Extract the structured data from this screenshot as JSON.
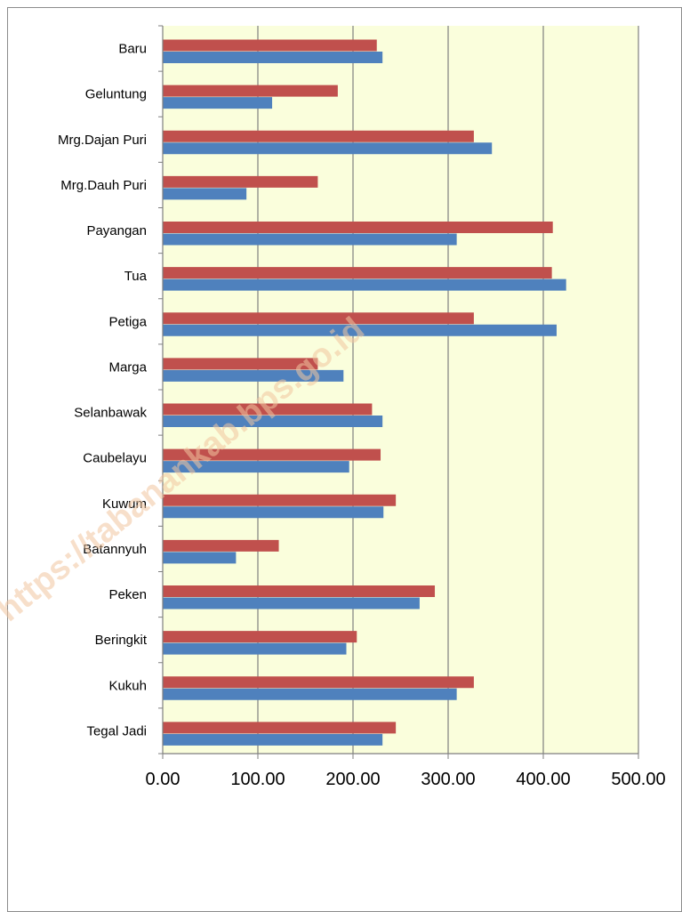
{
  "watermark": "https://tabanankab.bps.go.id",
  "colors": {
    "plot_background": "#fafedc",
    "series_red": "#c0504d",
    "series_blue": "#4f81bd",
    "gridline": "#7f7f7f",
    "axis": "#7f7f7f"
  },
  "chart_data": {
    "type": "bar",
    "orientation": "horizontal",
    "title": "",
    "xlabel": "",
    "ylabel": "",
    "xlim": [
      0,
      500
    ],
    "xticks": [
      "0.00",
      "100.00",
      "200.00",
      "300.00",
      "400.00",
      "500.00"
    ],
    "tick_values": [
      0,
      100,
      200,
      300,
      400,
      500
    ],
    "grid": "vertical major gridlines",
    "legend": "none",
    "categories": [
      "Baru",
      "Geluntung",
      "Mrg.Dajan Puri",
      "Mrg.Dauh Puri",
      "Payangan",
      "Tua",
      "Petiga",
      "Marga",
      "Selanbawak",
      "Caubelayu",
      "Kuwum",
      "Batannyuh",
      "Peken",
      "Beringkit",
      "Kukuh",
      "Tegal Jadi"
    ],
    "series": [
      {
        "color": "#c0504d",
        "values": [
          225,
          184,
          327,
          163,
          410,
          409,
          327,
          163,
          220,
          229,
          245,
          122,
          286,
          204,
          327,
          245
        ]
      },
      {
        "color": "#4f81bd",
        "values": [
          231,
          115,
          346,
          88,
          309,
          424,
          414,
          190,
          231,
          196,
          232,
          77,
          270,
          193,
          309,
          231
        ]
      }
    ]
  }
}
